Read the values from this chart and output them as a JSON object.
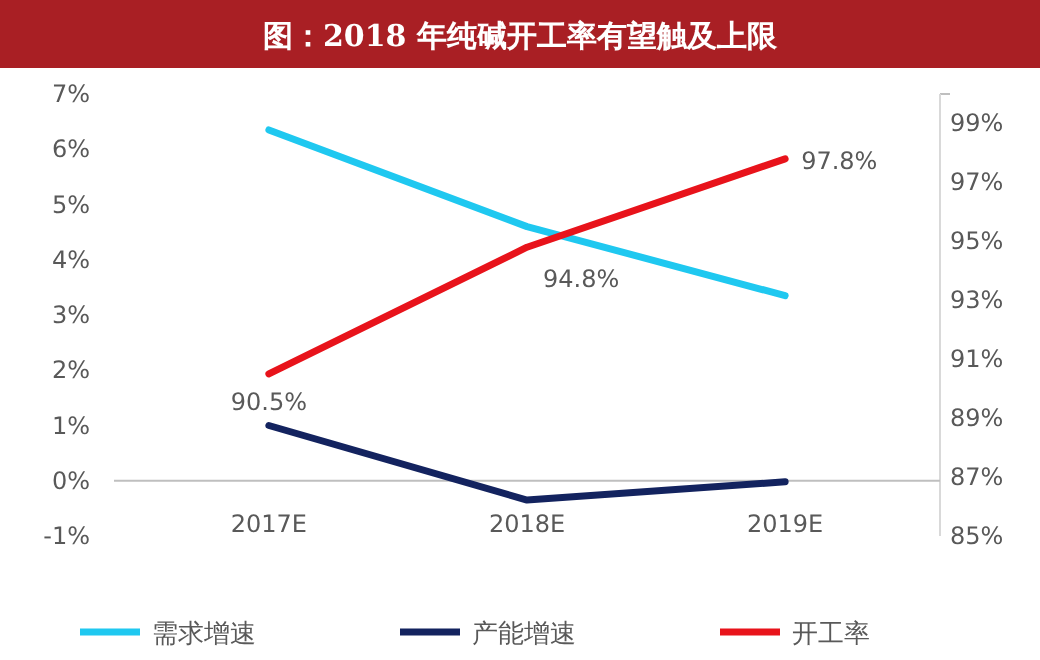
{
  "chart_data": {
    "type": "line",
    "title": "图：2018 年纯碱开工率有望触及上限",
    "categories": [
      "2017E",
      "2018E",
      "2019E"
    ],
    "series": [
      {
        "name": "需求增速",
        "color": "#1fc8f0",
        "values": [
          6.35,
          4.6,
          3.35
        ]
      },
      {
        "name": "产能增速",
        "color": "#13235f",
        "values": [
          1.0,
          -0.35,
          -0.02
        ]
      },
      {
        "name": "开工率",
        "color": "#e8131b",
        "values": [
          90.5,
          94.8,
          97.8
        ],
        "axis": "y2",
        "value_labels": [
          "90.5%",
          "94.8%",
          "97.8%"
        ]
      }
    ],
    "ylim": [
      -1,
      7
    ],
    "yticks": [
      {
        "value": -1,
        "label": "-1%"
      },
      {
        "value": 0,
        "label": "0%"
      },
      {
        "value": 1,
        "label": "1%"
      },
      {
        "value": 2,
        "label": "2%"
      },
      {
        "value": 3,
        "label": "3%"
      },
      {
        "value": 4,
        "label": "4%"
      },
      {
        "value": 5,
        "label": "5%"
      },
      {
        "value": 6,
        "label": "6%"
      },
      {
        "value": 7,
        "label": "7%"
      }
    ],
    "y2lim": [
      85,
      100
    ],
    "y2ticks": [
      {
        "value": 85,
        "label": "85%"
      },
      {
        "value": 87,
        "label": "87%"
      },
      {
        "value": 89,
        "label": "89%"
      },
      {
        "value": 91,
        "label": "91%"
      },
      {
        "value": 93,
        "label": "93%"
      },
      {
        "value": 95,
        "label": "95%"
      },
      {
        "value": 97,
        "label": "97%"
      },
      {
        "value": 99,
        "label": "99%"
      },
      {
        "value": 100,
        "label": null
      }
    ],
    "legend": "bottom",
    "grid": false
  }
}
